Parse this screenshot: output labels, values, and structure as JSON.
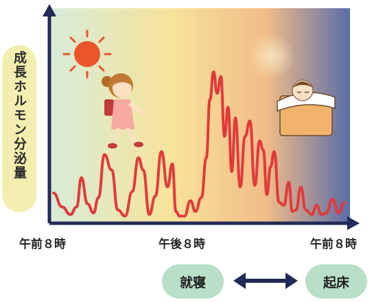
{
  "chart_data": {
    "type": "line",
    "ylabel": "成長ホルモン分泌量",
    "x_ticks": [
      "午前８時",
      "午後８時",
      "午前８時"
    ],
    "y_ticks_shown": false,
    "grid": false,
    "series": [
      {
        "color": "#e23a3a",
        "x_hours": [
          0,
          0.7,
          1.4,
          1.9,
          2.3,
          2.8,
          3.3,
          3.7,
          4.2,
          4.8,
          5.3,
          5.9,
          6.5,
          7.0,
          7.4,
          7.9,
          8.4,
          8.9,
          9.4,
          9.8,
          10.1,
          10.4,
          10.8,
          11.3,
          11.7,
          12.2,
          12.6,
          12.9,
          13.2,
          13.5,
          13.8,
          14.1,
          14.4,
          14.7,
          15.0,
          15.4,
          15.8,
          16.2,
          16.6,
          17.0,
          17.3,
          17.6,
          17.9,
          18.2,
          18.6,
          19.0,
          19.4,
          19.7,
          20.0,
          20.4,
          20.8,
          21.3,
          21.7,
          22.1,
          22.5,
          23.0,
          23.5,
          24.0
        ],
        "values": [
          17,
          8,
          3,
          8,
          27,
          10,
          4,
          14,
          42,
          32,
          6,
          2,
          18,
          40,
          32,
          3,
          15,
          44,
          21,
          36,
          5,
          2,
          2,
          12,
          5,
          14,
          40,
          78,
          96,
          82,
          93,
          54,
          73,
          31,
          66,
          21,
          54,
          64,
          22,
          51,
          45,
          16,
          34,
          44,
          11,
          9,
          24,
          5,
          6,
          21,
          6,
          3,
          9,
          3,
          4,
          13,
          4,
          11
        ]
      }
    ]
  },
  "labels": {
    "sleep": "就寝",
    "wake": "起床"
  },
  "colors": {
    "axis": "#222b57",
    "line": "#e23a3a",
    "pill": "#b9dfc8",
    "ylabel_pill": "#f2eeb0",
    "bg_left": "#d6ecd8",
    "bg_mid": "#f7e39a",
    "bg_night": "#f1bc88",
    "bg_right": "#5a6da8"
  }
}
